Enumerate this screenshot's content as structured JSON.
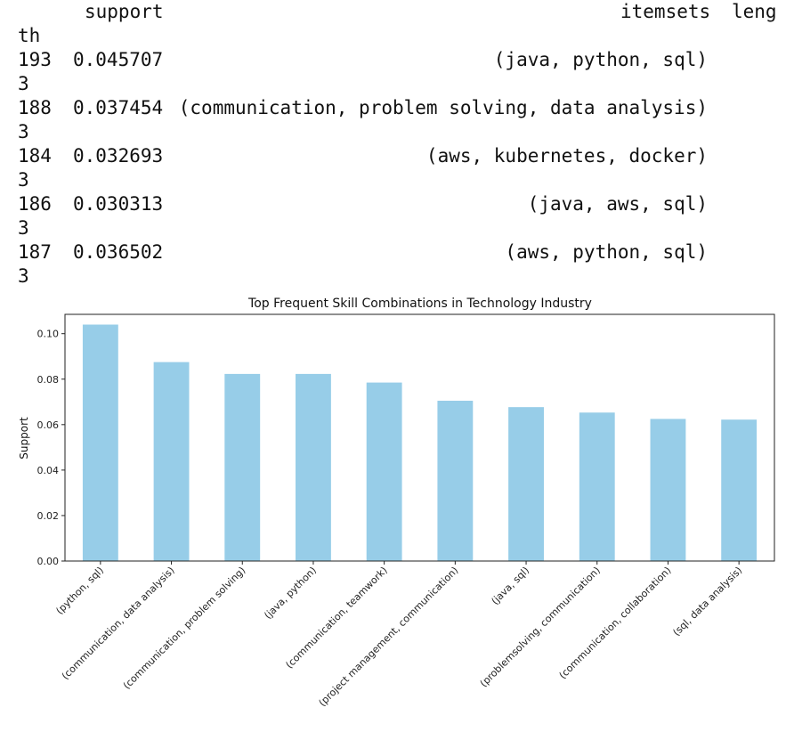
{
  "console": {
    "header_support": "support",
    "header_itemsets": "itemsets",
    "header_length_part1": "leng",
    "header_length_part2": "th",
    "rows": [
      {
        "index": "193",
        "support": "0.045707",
        "itemsets": "(java, python, sql)",
        "length": "3"
      },
      {
        "index": "188",
        "support": "0.037454",
        "itemsets": "(communication, problem solving, data analysis)",
        "length": "3"
      },
      {
        "index": "184",
        "support": "0.032693",
        "itemsets": "(aws, kubernetes, docker)",
        "length": "3"
      },
      {
        "index": "186",
        "support": "0.030313",
        "itemsets": "(java, aws, sql)",
        "length": "3"
      },
      {
        "index": "187",
        "support": "0.036502",
        "itemsets": "(aws, python, sql)",
        "length": "3"
      }
    ]
  },
  "chart_data": {
    "type": "bar",
    "title": "Top Frequent Skill Combinations in Technology Industry",
    "xlabel": "",
    "ylabel": "Support",
    "ylim": [
      0,
      0.1085
    ],
    "yticks": [
      0.0,
      0.02,
      0.04,
      0.06,
      0.08,
      0.1
    ],
    "ytick_labels": [
      "0.00",
      "0.02",
      "0.04",
      "0.06",
      "0.08",
      "0.10"
    ],
    "grid": false,
    "bar_color": "#97cde8",
    "categories": [
      "(python, sql)",
      "(communication, data analysis)",
      "(communication, problem solving)",
      "(java, python)",
      "(communication, teamwork)",
      "(project management, communication)",
      "(java, sql)",
      "(problemsolving, communication)",
      "(communication, collaboration)",
      "(sql, data analysis)"
    ],
    "values": [
      0.104,
      0.0875,
      0.0823,
      0.0823,
      0.0785,
      0.0705,
      0.0677,
      0.0653,
      0.0625,
      0.0622
    ]
  }
}
